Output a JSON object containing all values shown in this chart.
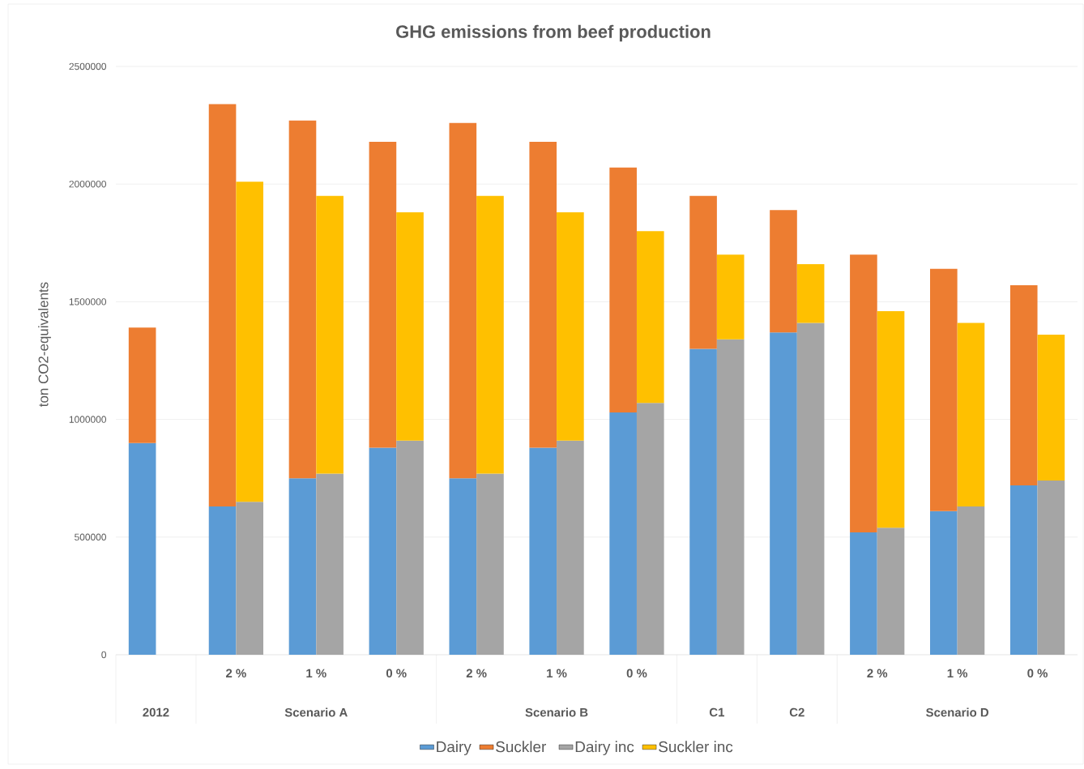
{
  "chart_data": [
    {
      "type": "bar",
      "stacked": true,
      "title": "GHG emissions from beef production",
      "ylabel": "ton CO2-equivalents",
      "categories": [
        null,
        "2 %",
        "1 %",
        "0 %",
        "2 %",
        "1 %",
        "0 %",
        null,
        null,
        "2 %",
        "1 %",
        "0 %"
      ],
      "annotations": [
        "2012",
        "Scenario A",
        "Scenario B",
        "C1",
        "C2",
        "Scenario D"
      ],
      "series": [
        {
          "name": "Dairy",
          "color": "#5b9bd5",
          "values": [
            900000,
            630000,
            750000,
            880000,
            750000,
            880000,
            1030000,
            1300000,
            1370000,
            520000,
            610000,
            720000
          ]
        },
        {
          "name": "Suckler",
          "color": "#ed7d31",
          "values": [
            490000,
            1710000,
            1520000,
            1300000,
            1510000,
            1300000,
            1040000,
            650000,
            520000,
            1180000,
            1030000,
            850000
          ]
        }
      ],
      "ylim": [
        0,
        2500000
      ],
      "yticks": [
        0,
        500000,
        1000000,
        1500000,
        2000000,
        2500000
      ],
      "grid": "y",
      "legend": "bottom"
    },
    {
      "type": "bar",
      "stacked": true,
      "series": [
        {
          "name": "Dairy inc",
          "color": "#a5a5a5",
          "values": [
            null,
            650000,
            770000,
            910000,
            770000,
            910000,
            1070000,
            1340000,
            1410000,
            540000,
            630000,
            740000
          ]
        },
        {
          "name": "Suckler inc",
          "color": "#ffc000",
          "values": [
            null,
            1360000,
            1180000,
            970000,
            1180000,
            970000,
            730000,
            360000,
            250000,
            920000,
            780000,
            620000
          ]
        }
      ],
      "ylim": [
        0,
        2500000
      ],
      "legend": "bottom"
    }
  ]
}
